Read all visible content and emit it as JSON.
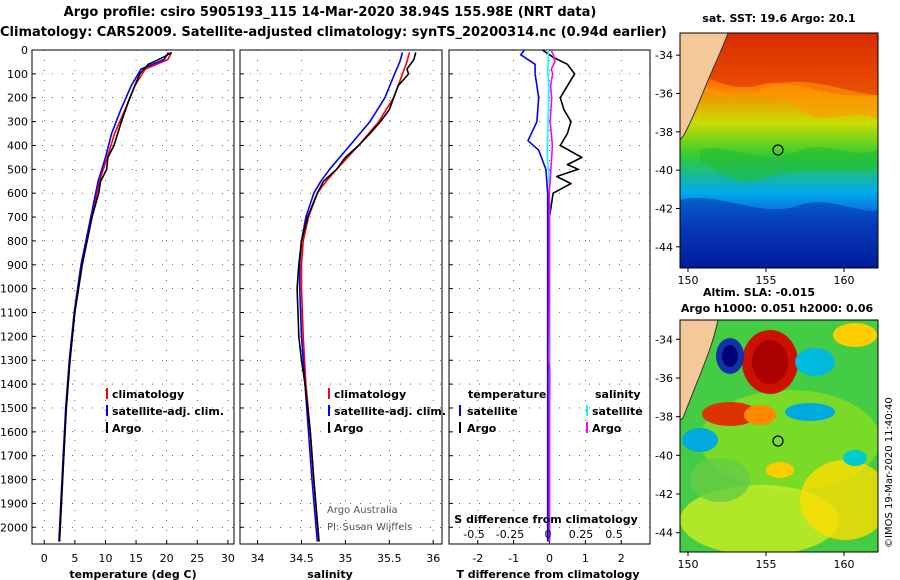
{
  "header": {
    "line1": "Argo profile: csiro 5905193_115 14-Mar-2020 38.94S 155.98E (NRT data)",
    "line2": "Climatology: CARS2009. Satellite-adjusted climatology: synTS_20200314.nc (0.94d earlier)"
  },
  "colors": {
    "climatology": "#ff0000",
    "satellite": "#0000ff",
    "argo": "#000000",
    "sat_salinity": "#00ffff",
    "argo_salinity": "#ff00ff"
  },
  "depth_ticks": [
    "0",
    "100",
    "200",
    "300",
    "400",
    "500",
    "600",
    "700",
    "800",
    "900",
    "1000",
    "1100",
    "1200",
    "1300",
    "1400",
    "1500",
    "1600",
    "1700",
    "1800",
    "1900",
    "2000"
  ],
  "chart_data": [
    {
      "type": "line",
      "name": "temperature",
      "xlabel": "temperature (deg C)",
      "xlim": [
        -2,
        31
      ],
      "ylim": [
        0,
        2070
      ],
      "xticks": [
        "0",
        "5",
        "10",
        "15",
        "20",
        "25",
        "30"
      ],
      "legend": [
        "climatology",
        "satellite-adj. clim.",
        "Argo"
      ],
      "series": [
        {
          "name": "climatology",
          "color": "#ff0000",
          "depth": [
            10,
            40,
            80,
            150,
            250,
            350,
            450,
            550,
            700,
            900,
            1100,
            1300,
            1500,
            1700,
            1900,
            2060
          ],
          "values": [
            20.8,
            20.2,
            16.5,
            14.8,
            13.2,
            11.5,
            10.3,
            9.0,
            7.8,
            6.2,
            5.0,
            4.2,
            3.6,
            3.2,
            2.8,
            2.5
          ]
        },
        {
          "name": "satellite-adj. clim.",
          "color": "#0000ff",
          "depth": [
            10,
            40,
            80,
            150,
            250,
            350,
            450,
            550,
            700,
            900,
            1100,
            1300,
            1500,
            1700,
            1900,
            2060
          ],
          "values": [
            20.3,
            19.6,
            15.8,
            14.2,
            12.5,
            11.0,
            10.0,
            8.8,
            7.6,
            6.0,
            4.9,
            4.1,
            3.5,
            3.1,
            2.7,
            2.4
          ]
        },
        {
          "name": "Argo",
          "color": "#000000",
          "depth": [
            10,
            30,
            60,
            100,
            150,
            200,
            300,
            400,
            450,
            500,
            550,
            600,
            700,
            900,
            1100,
            1300,
            1500,
            1700,
            1900,
            2060
          ],
          "values": [
            20.8,
            19.5,
            17.0,
            15.6,
            14.8,
            14.0,
            12.6,
            11.4,
            10.4,
            10.2,
            9.2,
            8.9,
            7.8,
            6.2,
            5.0,
            4.2,
            3.6,
            3.2,
            2.8,
            2.5
          ]
        }
      ]
    },
    {
      "type": "line",
      "name": "salinity",
      "xlabel": "salinity",
      "xlim": [
        33.8,
        36.1
      ],
      "ylim": [
        0,
        2070
      ],
      "xticks": [
        "34",
        "34.5",
        "35",
        "35.5",
        "36"
      ],
      "legend": [
        "climatology",
        "satellite-adj. clim.",
        "Argo"
      ],
      "credit": [
        "Argo Australia",
        "PI: Susan Wijffels"
      ],
      "series": [
        {
          "name": "climatology",
          "color": "#ff0000",
          "depth": [
            10,
            50,
            100,
            200,
            300,
            400,
            500,
            550,
            600,
            700,
            800,
            900,
            1000,
            1200,
            1400,
            1600,
            1800,
            2060
          ],
          "values": [
            35.73,
            35.7,
            35.65,
            35.55,
            35.38,
            35.15,
            34.9,
            34.78,
            34.68,
            34.58,
            34.52,
            34.5,
            34.5,
            34.52,
            34.55,
            34.6,
            34.64,
            34.7
          ]
        },
        {
          "name": "satellite-adj. clim.",
          "color": "#0000ff",
          "depth": [
            10,
            50,
            100,
            200,
            300,
            400,
            500,
            550,
            600,
            700,
            800,
            900,
            1000,
            1200,
            1400,
            1600,
            1800,
            2060
          ],
          "values": [
            35.65,
            35.62,
            35.56,
            35.45,
            35.28,
            35.05,
            34.82,
            34.72,
            34.64,
            34.55,
            34.5,
            34.48,
            34.48,
            34.5,
            34.54,
            34.58,
            34.62,
            34.68
          ]
        },
        {
          "name": "Argo",
          "color": "#000000",
          "depth": [
            10,
            40,
            80,
            100,
            150,
            200,
            250,
            300,
            350,
            400,
            450,
            500,
            550,
            600,
            700,
            800,
            900,
            1000,
            1100,
            1200,
            1300,
            1400,
            1600,
            1800,
            2060
          ],
          "values": [
            35.8,
            35.78,
            35.7,
            35.72,
            35.6,
            35.55,
            35.5,
            35.4,
            35.28,
            35.15,
            35.0,
            34.9,
            34.75,
            34.68,
            34.57,
            34.5,
            34.47,
            34.45,
            34.46,
            34.47,
            34.5,
            34.54,
            34.6,
            34.64,
            34.7
          ]
        }
      ]
    },
    {
      "type": "line",
      "name": "difference from climatology",
      "xlabel": "T difference from climatology",
      "xlim": [
        -2.8,
        2.8
      ],
      "ylim": [
        0,
        2070
      ],
      "xticks": [
        "-2",
        "-1",
        "0",
        "1",
        "2"
      ],
      "s_xlabel": "S difference from climatology",
      "s_xticks": [
        "-0.5",
        "-0.25",
        "0",
        "0.25",
        "0.5"
      ],
      "legend_left_title": "temperature",
      "legend_left": [
        "satellite",
        "Argo"
      ],
      "legend_right_title": "salinity",
      "legend_right": [
        "satellite",
        "Argo"
      ],
      "series": [
        {
          "name": "T satellite",
          "color": "#0000ff",
          "depth": [
            0,
            20,
            60,
            100,
            150,
            200,
            300,
            380,
            420,
            500,
            600,
            700,
            900,
            1100,
            1300,
            1500,
            1700,
            1900,
            2060
          ],
          "values": [
            -0.7,
            -0.8,
            -0.4,
            -0.4,
            -0.35,
            -0.3,
            -0.35,
            -0.6,
            -0.3,
            -0.1,
            -0.05,
            -0.05,
            -0.05,
            -0.05,
            -0.05,
            -0.05,
            -0.05,
            -0.05,
            -0.05
          ]
        },
        {
          "name": "T Argo",
          "color": "#000000",
          "depth": [
            0,
            30,
            60,
            100,
            150,
            200,
            250,
            300,
            350,
            400,
            450,
            480,
            500,
            530,
            560,
            600,
            650,
            700,
            900,
            1100,
            1300,
            1500,
            1700,
            1900,
            2060
          ],
          "values": [
            -0.2,
            0.1,
            0.5,
            0.7,
            0.5,
            0.3,
            0.4,
            0.6,
            0.5,
            0.3,
            0.9,
            0.5,
            0.8,
            0.2,
            0.6,
            0.1,
            0.05,
            0.0,
            0.0,
            0.0,
            0.0,
            0.0,
            0.0,
            0.0,
            0.0
          ]
        },
        {
          "name": "S satellite",
          "color": "#00ffff",
          "depth": [
            0,
            40,
            80,
            150,
            250,
            350,
            450,
            520,
            600,
            700,
            900,
            1100,
            1300,
            1500,
            1700,
            1900,
            2060
          ],
          "values": [
            -0.04,
            -0.03,
            -0.05,
            -0.02,
            -0.03,
            -0.05,
            -0.06,
            -0.02,
            0.0,
            0.0,
            0.0,
            0.0,
            0.0,
            0.0,
            0.0,
            0.0,
            0.0
          ]
        },
        {
          "name": "S Argo",
          "color": "#ff00ff",
          "depth": [
            0,
            20,
            50,
            80,
            100,
            150,
            200,
            300,
            400,
            500,
            550,
            600,
            700,
            900,
            1100,
            1300,
            1350,
            1500,
            1700,
            1900,
            2060
          ],
          "values": [
            0.04,
            0.11,
            0.15,
            0.05,
            0.09,
            0.03,
            0.06,
            0.02,
            0.08,
            0.04,
            0.02,
            -0.01,
            0.0,
            0.0,
            -0.01,
            -0.02,
            0.01,
            0.0,
            0.0,
            0.0,
            0.0
          ]
        }
      ]
    }
  ],
  "maps": {
    "sst_title": "sat. SST: 19.6 Argo: 20.1",
    "sla_title_1": "Altim. SLA: -0.015",
    "sla_title_2": "Argo h1000: 0.051 h2000: 0.06",
    "lat_ticks": [
      "-34",
      "-36",
      "-38",
      "-40",
      "-42",
      "-44"
    ],
    "lon_ticks": [
      "150",
      "155",
      "160"
    ]
  },
  "stamp": "©IMOS 19-Mar-2020 11:40:40"
}
